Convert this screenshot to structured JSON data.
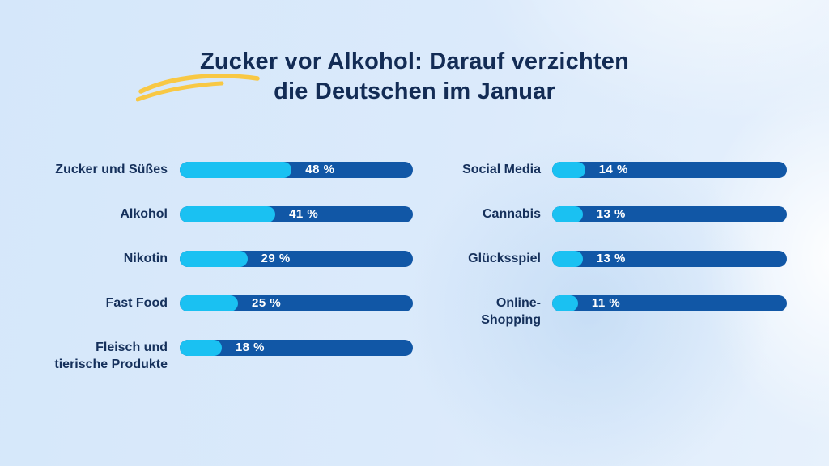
{
  "header": {
    "title_line1": "Zucker vor Alkohol: Darauf verzichten",
    "title_line2": "die Deutschen im Januar"
  },
  "colors": {
    "bar_track": "#1157A6",
    "bar_fill": "#1AC1F2",
    "title_text": "#132C55",
    "label_text": "#15305B",
    "value_text": "#FFFFFF",
    "swoosh_accent": "#F8C844",
    "background_base": "#D9E9FB"
  },
  "chart_data": {
    "type": "bar",
    "orientation": "horizontal",
    "title": "Zucker vor Alkohol: Darauf verzichten die Deutschen im Januar",
    "unit": "%",
    "xlim": [
      0,
      100
    ],
    "grid": false,
    "legend": false,
    "columns": {
      "left": [
        {
          "label": "Zucker und Süßes",
          "value": 48,
          "value_label": "48 %"
        },
        {
          "label": "Alkohol",
          "value": 41,
          "value_label": "41 %"
        },
        {
          "label": "Nikotin",
          "value": 29,
          "value_label": "29 %"
        },
        {
          "label": "Fast Food",
          "value": 25,
          "value_label": "25 %"
        },
        {
          "label": "Fleisch und\ntierische Produkte",
          "value": 18,
          "value_label": "18 %"
        }
      ],
      "right": [
        {
          "label": "Social Media",
          "value": 14,
          "value_label": "14 %"
        },
        {
          "label": "Cannabis",
          "value": 13,
          "value_label": "13 %"
        },
        {
          "label": "Glücksspiel",
          "value": 13,
          "value_label": "13 %"
        },
        {
          "label": "Online-\nShopping",
          "value": 11,
          "value_label": "11 %"
        }
      ]
    }
  }
}
